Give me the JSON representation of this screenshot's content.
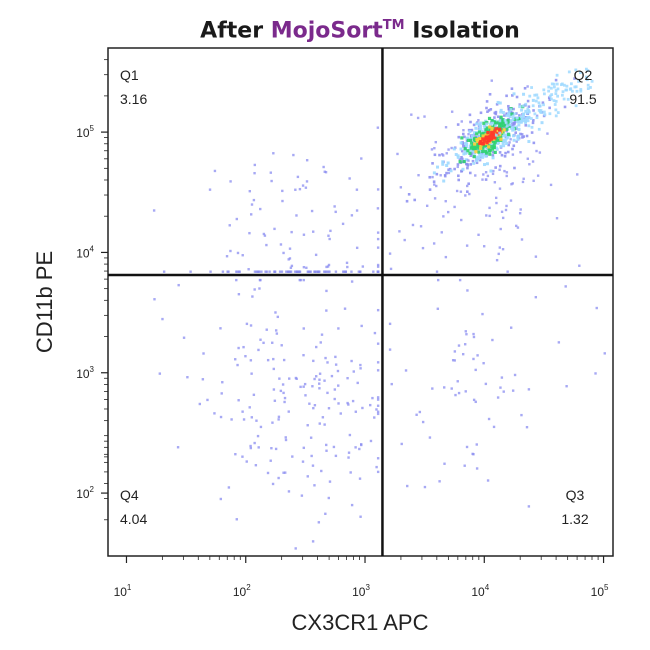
{
  "title": {
    "prefix": "After ",
    "brand": "MojoSort",
    "trademark": "TM",
    "suffix": " Isolation"
  },
  "colors": {
    "brand": "#7b2a8c",
    "dots": "#8a8cf0",
    "gate_lines": "#111111",
    "density_low": "#9fd9ff",
    "density_mid": "#2ed26f",
    "density_high": "#ff3b2b"
  },
  "chart_data": {
    "type": "scatter",
    "subtype": "flow-cytometry-quadrant-density",
    "xlabel": "CX3CR1 APC",
    "ylabel": "CD11b PE",
    "xscale": "log",
    "yscale": "log",
    "xlim": [
      7,
      120000
    ],
    "ylim": [
      30,
      500000
    ],
    "x_ticks": [
      {
        "value": 10,
        "base": "10",
        "exp": "1"
      },
      {
        "value": 100,
        "base": "10",
        "exp": "2"
      },
      {
        "value": 1000,
        "base": "10",
        "exp": "3"
      },
      {
        "value": 10000,
        "base": "10",
        "exp": "4"
      },
      {
        "value": 100000,
        "base": "10",
        "exp": "5"
      }
    ],
    "y_ticks": [
      {
        "value": 100,
        "base": "10",
        "exp": "2"
      },
      {
        "value": 1000,
        "base": "10",
        "exp": "3"
      },
      {
        "value": 10000,
        "base": "10",
        "exp": "4"
      },
      {
        "value": 100000,
        "base": "10",
        "exp": "5"
      }
    ],
    "gates": {
      "x": 1400,
      "y": 6500
    },
    "quadrants": [
      {
        "name": "Q1",
        "value": "3.16",
        "corner": "top-left"
      },
      {
        "name": "Q2",
        "value": "91.5",
        "corner": "top-right"
      },
      {
        "name": "Q3",
        "value": "1.32",
        "corner": "bottom-right"
      },
      {
        "name": "Q4",
        "value": "4.04",
        "corner": "bottom-left"
      }
    ],
    "grid": false,
    "legend": "none",
    "dense_population": {
      "center_x": 11000,
      "center_y": 90000,
      "peak_color": "red"
    }
  }
}
